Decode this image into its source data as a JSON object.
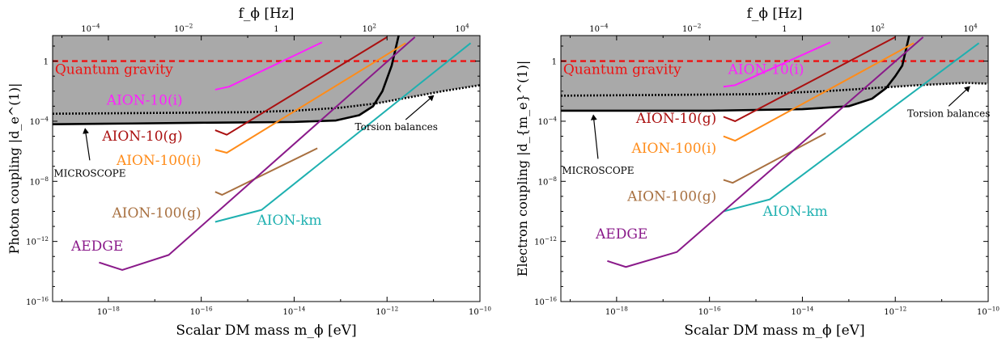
{
  "chart_data": [
    {
      "type": "line",
      "panel": "photon",
      "xlabel": "Scalar DM mass m_ϕ [eV]",
      "ylabel": "Photon coupling |d_e^(1)|",
      "top_axis_label": "f_ϕ [Hz]",
      "x_scale": "log",
      "y_scale": "log",
      "xlim_log10": [
        -19.2,
        -10
      ],
      "ylim_log10": [
        -16,
        1.7
      ],
      "x_ticks": [
        "10^{-18}",
        "10^{-16}",
        "10^{-14}",
        "10^{-12}",
        "10^{-10}"
      ],
      "y_ticks": [
        "1",
        "10^{-4}",
        "10^{-8}",
        "10^{-12}",
        "10^{-16}"
      ],
      "top_ticks": [
        "10^{-4}",
        "10^{-2}",
        "1",
        "10^{2}",
        "10^{4}"
      ],
      "excluded_region": "gray-shaded, above MICROSCOPE / Torsion balances",
      "series": [
        {
          "name": "Quantum gravity",
          "style": "dashed",
          "color": "#ee1111",
          "x": [
            -19.2,
            -10
          ],
          "y": [
            0,
            0
          ]
        },
        {
          "name": "MICROSCOPE",
          "style": "solid",
          "color": "#000000",
          "x": [
            -19.2,
            -17.5,
            -16,
            -14,
            -13.1,
            -12.6,
            -12.3,
            -12.1,
            -11.9,
            -11.75
          ],
          "y": [
            -4.2,
            -4.15,
            -4.1,
            -4.05,
            -3.95,
            -3.6,
            -3.0,
            -2.0,
            -0.3,
            1.7
          ]
        },
        {
          "name": "Torsion balances",
          "style": "dotted",
          "color": "#000000",
          "x": [
            -19.2,
            -17,
            -15,
            -14,
            -13,
            -12.2,
            -11.5,
            -10.8,
            -10
          ],
          "y": [
            -3.5,
            -3.45,
            -3.4,
            -3.3,
            -3.1,
            -2.8,
            -2.4,
            -2.0,
            -1.6
          ]
        },
        {
          "name": "AION-10(i)",
          "style": "solid",
          "color": "#ff20ff",
          "x": [
            -15.7,
            -15.4,
            -13.4
          ],
          "y": [
            -1.9,
            -1.7,
            1.25
          ]
        },
        {
          "name": "AION-10(g)",
          "style": "solid",
          "color": "#aa1010",
          "x": [
            -15.7,
            -15.45,
            -12.0
          ],
          "y": [
            -4.6,
            -4.9,
            1.6
          ]
        },
        {
          "name": "AION-100(i)",
          "style": "solid",
          "color": "#ff8c1a",
          "x": [
            -15.7,
            -15.45,
            -11.6
          ],
          "y": [
            -5.9,
            -6.1,
            1.2
          ]
        },
        {
          "name": "AION-100(g)",
          "style": "solid",
          "color": "#a87040",
          "x": [
            -15.7,
            -15.55,
            -13.5
          ],
          "y": [
            -8.7,
            -8.9,
            -5.8
          ]
        },
        {
          "name": "AION-km",
          "style": "solid",
          "color": "#1eb0b0",
          "x": [
            -15.7,
            -14.7,
            -10.2
          ],
          "y": [
            -10.7,
            -9.9,
            1.2
          ]
        },
        {
          "name": "AEDGE",
          "style": "solid",
          "color": "#8a1a8a",
          "x": [
            -18.2,
            -17.7,
            -16.7,
            -11.4
          ],
          "y": [
            -13.4,
            -13.9,
            -12.9,
            1.6
          ]
        }
      ],
      "annotations": [
        "Quantum gravity",
        "AION-10(i)",
        "AION-10(g)",
        "AION-100(i)",
        "AION-100(g)",
        "AION-km",
        "AEDGE",
        "MICROSCOPE",
        "Torsion balances"
      ]
    },
    {
      "type": "line",
      "panel": "electron",
      "xlabel": "Scalar DM mass m_ϕ [eV]",
      "ylabel": "Electron coupling |d_{m_e}^(1)|",
      "top_axis_label": "f_ϕ [Hz]",
      "x_scale": "log",
      "y_scale": "log",
      "xlim_log10": [
        -19.2,
        -10
      ],
      "ylim_log10": [
        -16,
        1.7
      ],
      "x_ticks": [
        "10^{-18}",
        "10^{-16}",
        "10^{-14}",
        "10^{-12}",
        "10^{-10}"
      ],
      "y_ticks": [
        "1",
        "10^{-4}",
        "10^{-8}",
        "10^{-12}",
        "10^{-16}"
      ],
      "top_ticks": [
        "10^{-4}",
        "10^{-2}",
        "1",
        "10^{2}",
        "10^{4}"
      ],
      "excluded_region": "gray-shaded, above MICROSCOPE / Torsion balances",
      "series": [
        {
          "name": "Quantum gravity",
          "style": "dashed",
          "color": "#ee1111",
          "x": [
            -19.2,
            -10
          ],
          "y": [
            0,
            0
          ]
        },
        {
          "name": "MICROSCOPE",
          "style": "solid",
          "color": "#000000",
          "x": [
            -19.2,
            -16,
            -14,
            -13,
            -12.5,
            -12.2,
            -12.0,
            -11.85,
            -11.7
          ],
          "y": [
            -3.3,
            -3.3,
            -3.2,
            -3.0,
            -2.5,
            -1.8,
            -1.0,
            -0.3,
            1.7
          ]
        },
        {
          "name": "Torsion balances",
          "style": "dotted",
          "color": "#000000",
          "x": [
            -19.2,
            -17,
            -15,
            -13.5,
            -12.5,
            -11.5,
            -10.5,
            -10
          ],
          "y": [
            -2.3,
            -2.25,
            -2.2,
            -2.0,
            -1.8,
            -1.6,
            -1.45,
            -1.5
          ]
        },
        {
          "name": "AION-10(i)",
          "style": "solid",
          "color": "#ff20ff",
          "x": [
            -15.7,
            -15.45,
            -13.4
          ],
          "y": [
            -1.7,
            -1.6,
            1.25
          ]
        },
        {
          "name": "AION-10(g)",
          "style": "solid",
          "color": "#aa1010",
          "x": [
            -15.7,
            -15.45,
            -12.0
          ],
          "y": [
            -3.7,
            -4.0,
            1.6
          ]
        },
        {
          "name": "AION-100(i)",
          "style": "solid",
          "color": "#ff8c1a",
          "x": [
            -15.7,
            -15.45,
            -11.6
          ],
          "y": [
            -5.0,
            -5.3,
            1.2
          ]
        },
        {
          "name": "AION-100(g)",
          "style": "solid",
          "color": "#a87040",
          "x": [
            -15.7,
            -15.5,
            -13.5
          ],
          "y": [
            -7.9,
            -8.1,
            -4.8
          ]
        },
        {
          "name": "AION-km",
          "style": "solid",
          "color": "#1eb0b0",
          "x": [
            -15.7,
            -14.7,
            -10.2
          ],
          "y": [
            -10.0,
            -9.2,
            1.2
          ]
        },
        {
          "name": "AEDGE",
          "style": "solid",
          "color": "#8a1a8a",
          "x": [
            -18.2,
            -17.8,
            -16.7,
            -11.4
          ],
          "y": [
            -13.3,
            -13.7,
            -12.7,
            1.6
          ]
        }
      ],
      "annotations": [
        "Quantum gravity",
        "AION-10(i)",
        "AION-10(g)",
        "AION-100(i)",
        "AION-100(g)",
        "AION-km",
        "AEDGE",
        "MICROSCOPE",
        "Torsion balances"
      ]
    }
  ]
}
